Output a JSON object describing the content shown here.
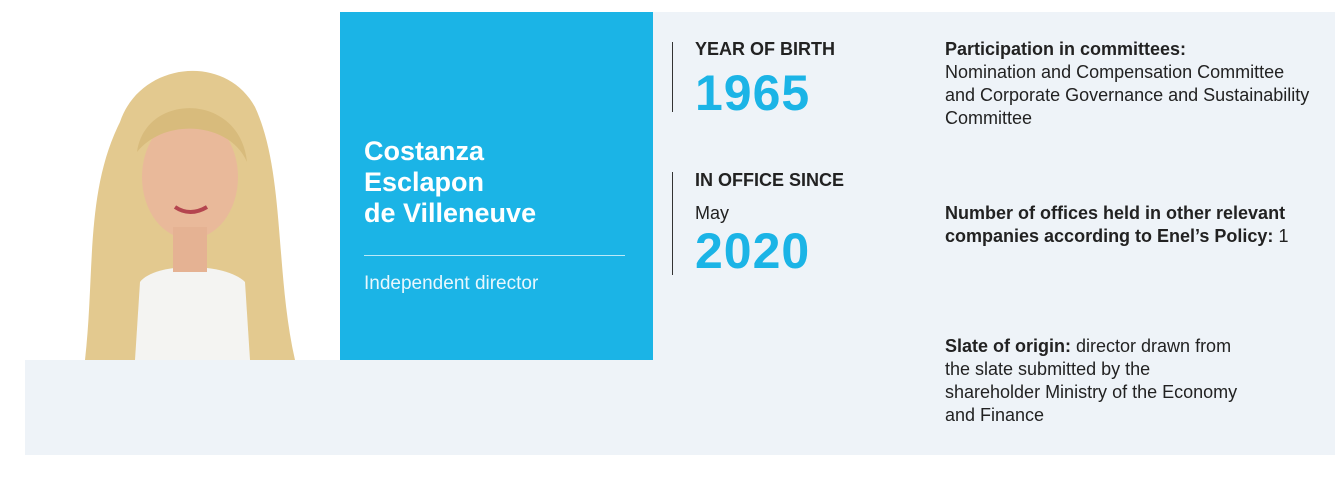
{
  "profile": {
    "name_lines": [
      "Costanza",
      "Esclapon",
      "de Villeneuve"
    ],
    "role": "Independent director",
    "year_of_birth": {
      "label": "YEAR OF BIRTH",
      "value": 1965
    },
    "in_office_since": {
      "label": "IN OFFICE SINCE",
      "month": "May",
      "year": 2020
    },
    "committees": {
      "label": "Participation in committees:",
      "text": "Nomination and Compensation Committee and Corporate Governance and Sustainability Committee"
    },
    "offices": {
      "label": "Number of offices held in other relevant companies according to Enel’s Policy:",
      "value": 1
    },
    "slate": {
      "label": "Slate of origin:",
      "text": "director drawn from the slate submitted by the shareholder Ministry of the Economy and Finance"
    }
  }
}
